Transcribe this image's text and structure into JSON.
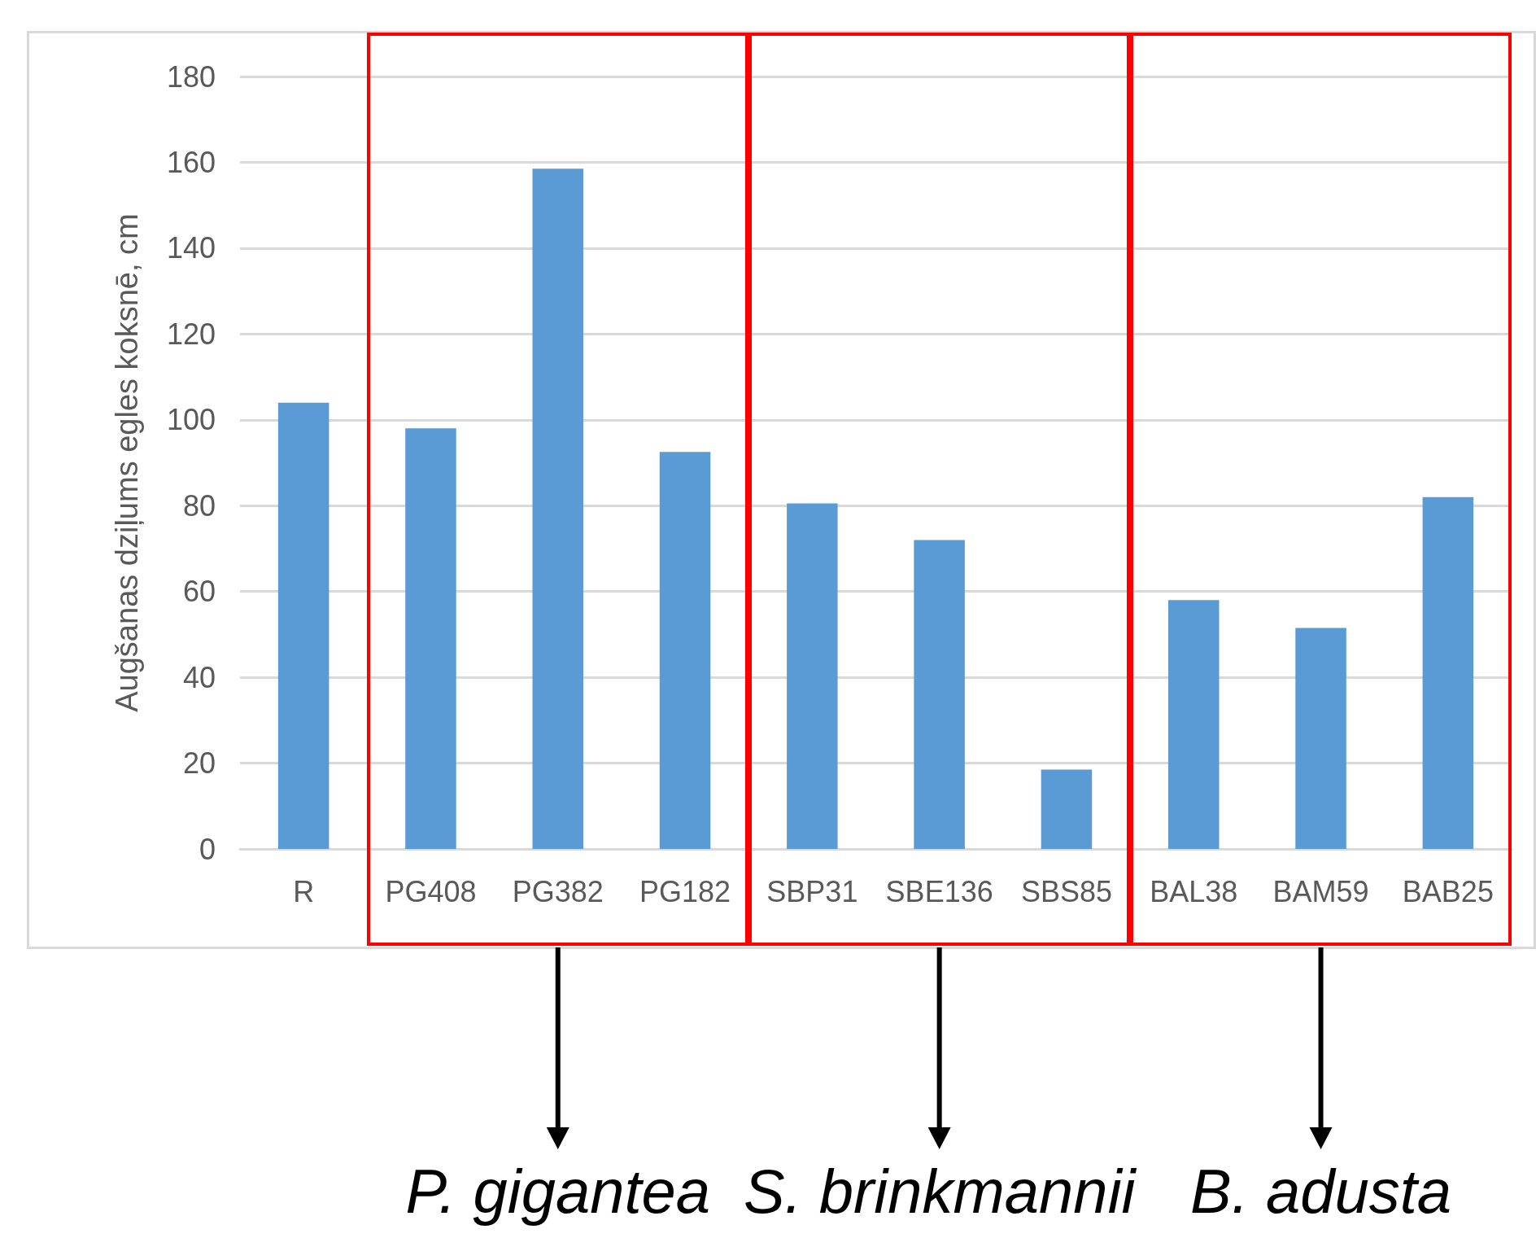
{
  "chart_data": {
    "type": "bar",
    "ylabel": "Augšanas dziļums egles koksnē, cm",
    "categories": [
      "R",
      "PG408",
      "PG382",
      "PG182",
      "SBP31",
      "SBE136",
      "SBS85",
      "BAL38",
      "BAM59",
      "BAB25"
    ],
    "values": [
      104,
      98,
      158.5,
      92.5,
      80.5,
      72,
      18.5,
      58,
      51.5,
      82
    ],
    "color": "#5b9bd5",
    "ylim": [
      0,
      180
    ],
    "yticks": [
      0,
      20,
      40,
      60,
      80,
      100,
      120,
      140,
      160,
      180
    ],
    "grid": "y",
    "annotations": [
      "P. gigantea",
      "S. brinkmannii",
      "B. adusta"
    ]
  }
}
